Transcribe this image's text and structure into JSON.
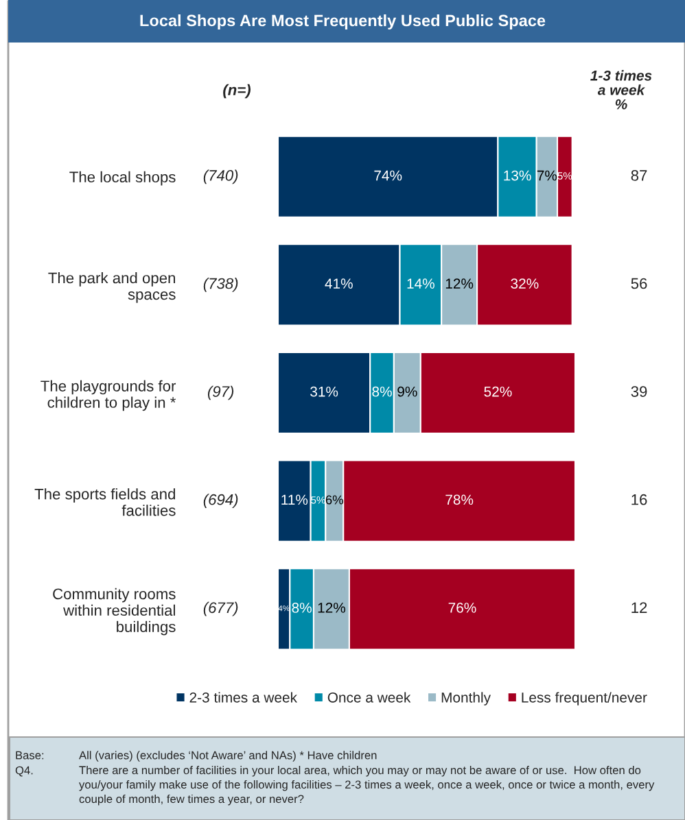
{
  "chart_data": {
    "type": "bar",
    "orientation": "horizontal",
    "stacked": true,
    "title": "Local Shops Are Most Frequently Used Public Space",
    "categories": [
      "The local shops",
      "The park and open\nspaces",
      "The playgrounds for\nchildren to play in *",
      "The sports fields and\nfacilities",
      "Community rooms\nwithin residential\nbuildings"
    ],
    "series": [
      {
        "name": "2-3 times a week",
        "color": "#003462",
        "values": [
          74,
          41,
          31,
          11,
          4
        ],
        "value_labels": [
          "74%",
          "41%",
          "31%",
          "11%",
          "4%"
        ]
      },
      {
        "name": "Once a week",
        "color": "#008aa8",
        "values": [
          13,
          14,
          8,
          5,
          8
        ],
        "value_labels": [
          "13%",
          "14%",
          "8%",
          "5%",
          "8%"
        ]
      },
      {
        "name": "Monthly",
        "color": "#9bbac7",
        "values": [
          7,
          12,
          9,
          6,
          12
        ],
        "value_labels": [
          "7%",
          "12%",
          "9%",
          "6%",
          "12%"
        ]
      },
      {
        "name": "Less frequent/never",
        "color": "#a50021",
        "values": [
          5,
          32,
          52,
          78,
          76
        ],
        "value_labels": [
          "5%",
          "32%",
          "52%",
          "78%",
          "76%"
        ]
      }
    ],
    "legend": "bottom",
    "annotations": [
      "(n=)",
      "(740)",
      "(738)",
      "(97)",
      "(694)",
      "(677)",
      "1-3 times\na week\n%",
      "87",
      "56",
      "39",
      "16",
      "12",
      "Base:",
      "All (varies) (excludes ‘Not Aware’ and NAs) * Have children",
      "Q4.",
      "There are a number of facilities in your local area, which you may or may not be aware of or use.  How often do you/your family make use of the following facilities – 2-3 times a week, once a week, once or twice a month, every couple of month, few times a year, or never?"
    ]
  }
}
